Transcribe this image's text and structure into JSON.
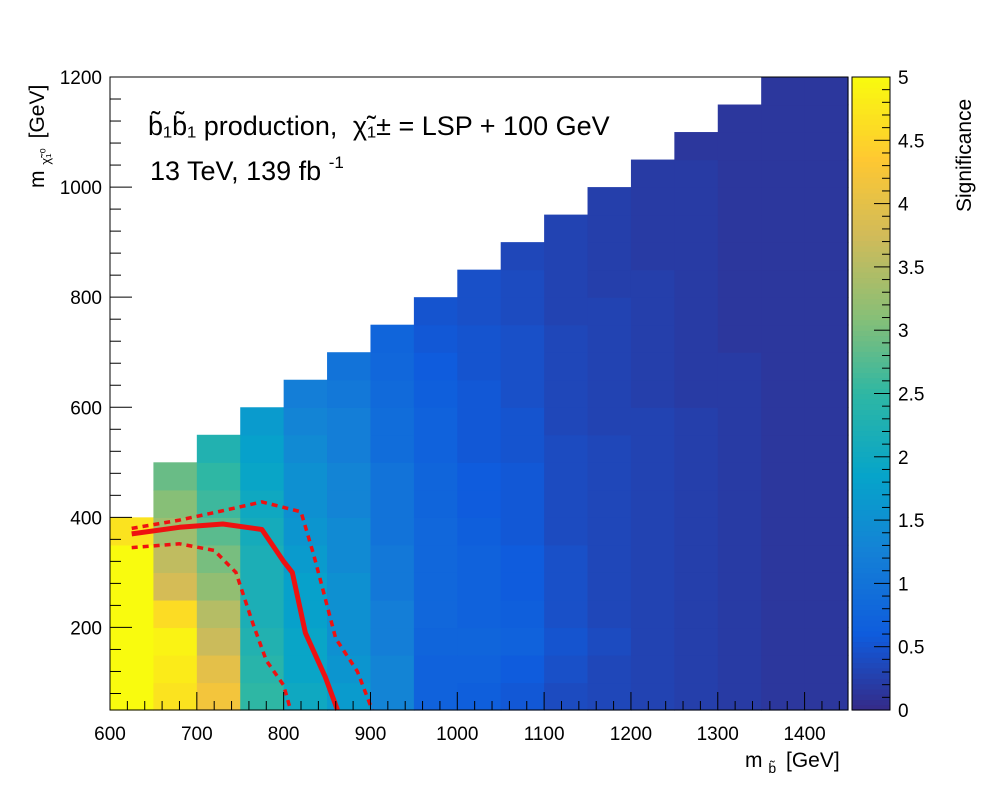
{
  "chart_data": {
    "type": "heatmap",
    "title_line1": {
      "process": "b̃₁b̃₁ production,",
      "chargino": "χ̃₁± = LSP + 100 GeV"
    },
    "title_line2": {
      "energy": "13 TeV, 139 fb",
      "lumi_sup": "-1"
    },
    "xlabel": {
      "main": "m",
      "sub": "b̃",
      "unit": "[GeV]"
    },
    "ylabel": {
      "main": "m",
      "sub": "χ̃₁⁰",
      "unit": "[GeV]"
    },
    "xlim": [
      600,
      1450
    ],
    "ylim": [
      50,
      1200
    ],
    "x_ticks": [
      600,
      700,
      800,
      900,
      1000,
      1100,
      1200,
      1300,
      1400
    ],
    "y_ticks": [
      200,
      400,
      600,
      800,
      1000,
      1200
    ],
    "colorbar": {
      "label": "Significance",
      "range": [
        0,
        5
      ],
      "ticks": [
        "0",
        "0.5",
        "1",
        "1.5",
        "2",
        "2.5",
        "3",
        "3.5",
        "4",
        "4.5",
        "5"
      ]
    },
    "bins": {
      "x_edges": [
        600,
        650,
        700,
        750,
        800,
        850,
        900,
        950,
        1000,
        1050,
        1100,
        1150,
        1200,
        1250,
        1300,
        1350,
        1400,
        1450
      ],
      "y_step": 50,
      "y_start": 50,
      "rows_from_bottom": [
        [
          5.0,
          4.7,
          4.2,
          2.5,
          2.0,
          1.7,
          1.3,
          0.7,
          0.65,
          0.55,
          0.4,
          0.35,
          0.3,
          0.25,
          0.2,
          0.15,
          0.15
        ],
        [
          5.0,
          4.8,
          4.0,
          2.4,
          1.9,
          1.6,
          1.3,
          0.7,
          0.7,
          0.6,
          0.45,
          0.35,
          0.3,
          0.25,
          0.2,
          0.15,
          0.15
        ],
        [
          5.0,
          4.9,
          3.7,
          2.3,
          1.9,
          1.5,
          1.2,
          0.75,
          0.75,
          0.7,
          0.5,
          0.4,
          0.3,
          0.25,
          0.2,
          0.15,
          0.15
        ],
        [
          5.0,
          4.6,
          3.5,
          2.2,
          1.8,
          1.5,
          1.2,
          0.8,
          0.7,
          0.65,
          0.45,
          0.35,
          0.3,
          0.25,
          0.2,
          0.15,
          0.15
        ],
        [
          5.0,
          3.8,
          3.2,
          2.2,
          1.8,
          1.5,
          1.1,
          0.8,
          0.7,
          0.6,
          0.45,
          0.35,
          0.3,
          0.25,
          0.2,
          0.15,
          0.15
        ],
        [
          5.0,
          3.6,
          3.0,
          2.2,
          1.7,
          1.4,
          1.1,
          0.8,
          0.7,
          0.6,
          0.45,
          0.35,
          0.3,
          0.25,
          0.2,
          0.15,
          0.15
        ],
        [
          4.7,
          3.3,
          2.8,
          2.1,
          1.6,
          1.4,
          1.0,
          0.8,
          0.65,
          0.55,
          0.4,
          0.35,
          0.3,
          0.25,
          0.2,
          0.15,
          0.15
        ],
        [
          null,
          3.1,
          2.6,
          2.0,
          1.5,
          1.3,
          1.0,
          0.75,
          0.6,
          0.55,
          0.4,
          0.35,
          0.3,
          0.25,
          0.2,
          0.15,
          0.15
        ],
        [
          null,
          2.9,
          2.5,
          1.9,
          1.5,
          1.3,
          1.0,
          0.75,
          0.6,
          0.55,
          0.4,
          0.35,
          0.3,
          0.25,
          0.2,
          0.15,
          0.15
        ],
        [
          null,
          null,
          2.3,
          1.8,
          1.4,
          1.2,
          0.9,
          0.7,
          0.55,
          0.5,
          0.4,
          0.35,
          0.3,
          0.25,
          0.2,
          0.15,
          0.15
        ],
        [
          null,
          null,
          null,
          1.7,
          1.3,
          1.2,
          0.9,
          0.7,
          0.55,
          0.5,
          0.35,
          0.3,
          0.3,
          0.25,
          0.2,
          0.15,
          0.15
        ],
        [
          null,
          null,
          null,
          null,
          1.2,
          1.1,
          0.85,
          0.65,
          0.55,
          0.45,
          0.35,
          0.3,
          0.25,
          0.2,
          0.2,
          0.15,
          0.15
        ],
        [
          null,
          null,
          null,
          null,
          null,
          1.0,
          0.8,
          0.6,
          0.5,
          0.45,
          0.35,
          0.3,
          0.25,
          0.2,
          0.2,
          0.15,
          0.15
        ],
        [
          null,
          null,
          null,
          null,
          null,
          null,
          0.75,
          0.55,
          0.5,
          0.45,
          0.35,
          0.3,
          0.25,
          0.2,
          0.15,
          0.15,
          0.15
        ],
        [
          null,
          null,
          null,
          null,
          null,
          null,
          null,
          0.5,
          0.45,
          0.4,
          0.3,
          0.3,
          0.25,
          0.2,
          0.15,
          0.15,
          0.15
        ],
        [
          null,
          null,
          null,
          null,
          null,
          null,
          null,
          null,
          0.45,
          0.4,
          0.3,
          0.25,
          0.25,
          0.2,
          0.15,
          0.15,
          0.15
        ],
        [
          null,
          null,
          null,
          null,
          null,
          null,
          null,
          null,
          null,
          0.35,
          0.3,
          0.25,
          0.2,
          0.2,
          0.15,
          0.15,
          0.15
        ],
        [
          null,
          null,
          null,
          null,
          null,
          null,
          null,
          null,
          null,
          null,
          0.3,
          0.25,
          0.2,
          0.2,
          0.15,
          0.15,
          0.15
        ],
        [
          null,
          null,
          null,
          null,
          null,
          null,
          null,
          null,
          null,
          null,
          null,
          0.25,
          0.2,
          0.2,
          0.15,
          0.15,
          0.15
        ],
        [
          null,
          null,
          null,
          null,
          null,
          null,
          null,
          null,
          null,
          null,
          null,
          null,
          0.2,
          0.2,
          0.15,
          0.15,
          0.15
        ],
        [
          null,
          null,
          null,
          null,
          null,
          null,
          null,
          null,
          null,
          null,
          null,
          null,
          null,
          0.15,
          0.15,
          0.15,
          0.15
        ],
        [
          null,
          null,
          null,
          null,
          null,
          null,
          null,
          null,
          null,
          null,
          null,
          null,
          null,
          null,
          0.15,
          0.15,
          0.15
        ],
        [
          null,
          null,
          null,
          null,
          null,
          null,
          null,
          null,
          null,
          null,
          null,
          null,
          null,
          null,
          null,
          0.15,
          0.15
        ]
      ]
    },
    "contours": [
      {
        "name": "nominal",
        "style": "solid",
        "color": "#ee1111",
        "points": [
          [
            625,
            370
          ],
          [
            680,
            382
          ],
          [
            730,
            388
          ],
          [
            775,
            378
          ],
          [
            800,
            320
          ],
          [
            810,
            300
          ],
          [
            825,
            190
          ],
          [
            848,
            110
          ],
          [
            862,
            50
          ]
        ]
      },
      {
        "name": "upper",
        "style": "dotted",
        "color": "#ee1111",
        "points": [
          [
            625,
            380
          ],
          [
            680,
            395
          ],
          [
            730,
            412
          ],
          [
            775,
            428
          ],
          [
            820,
            410
          ],
          [
            835,
            330
          ],
          [
            845,
            270
          ],
          [
            860,
            180
          ],
          [
            885,
            120
          ],
          [
            902,
            50
          ]
        ]
      },
      {
        "name": "lower",
        "style": "dotted",
        "color": "#ee1111",
        "points": [
          [
            625,
            345
          ],
          [
            680,
            352
          ],
          [
            720,
            340
          ],
          [
            745,
            300
          ],
          [
            765,
            205
          ],
          [
            780,
            140
          ],
          [
            800,
            95
          ],
          [
            808,
            50
          ]
        ]
      }
    ]
  }
}
